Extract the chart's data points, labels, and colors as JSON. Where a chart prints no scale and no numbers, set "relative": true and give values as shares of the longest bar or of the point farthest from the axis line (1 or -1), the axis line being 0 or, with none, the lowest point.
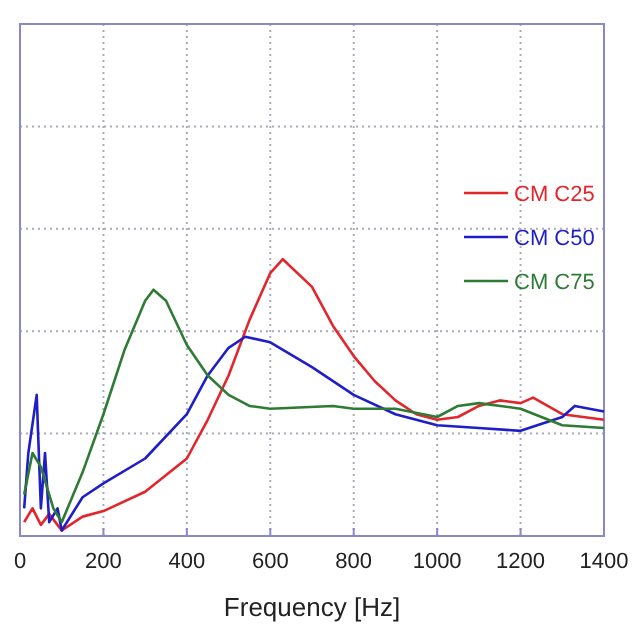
{
  "chart_data": {
    "type": "line",
    "relative": true,
    "xlabel": "Frequency [Hz]",
    "xlim": [
      0,
      1400
    ],
    "xticks": [
      0,
      200,
      400,
      600,
      800,
      1000,
      1200,
      1400
    ],
    "grid": true,
    "legend": "right",
    "series": [
      {
        "name": "CM C25",
        "color": "#e3262b",
        "x": [
          10,
          30,
          50,
          70,
          100,
          150,
          200,
          300,
          400,
          450,
          500,
          550,
          600,
          630,
          700,
          750,
          800,
          850,
          900,
          950,
          1000,
          1050,
          1100,
          1150,
          1200,
          1230,
          1300,
          1400
        ],
        "values": [
          0.05,
          0.1,
          0.04,
          0.08,
          0.02,
          0.07,
          0.09,
          0.16,
          0.28,
          0.42,
          0.58,
          0.78,
          0.95,
          1,
          0.9,
          0.76,
          0.65,
          0.56,
          0.49,
          0.44,
          0.42,
          0.43,
          0.47,
          0.49,
          0.48,
          0.5,
          0.44,
          0.42
        ]
      },
      {
        "name": "CM C50",
        "color": "#1f1fc8",
        "x": [
          10,
          20,
          40,
          50,
          60,
          70,
          90,
          100,
          150,
          200,
          300,
          400,
          450,
          500,
          540,
          600,
          700,
          800,
          900,
          1000,
          1100,
          1200,
          1300,
          1330,
          1400
        ],
        "values": [
          0.1,
          0.3,
          0.51,
          0.1,
          0.3,
          0.05,
          0.1,
          0.02,
          0.14,
          0.19,
          0.28,
          0.44,
          0.58,
          0.68,
          0.72,
          0.7,
          0.61,
          0.51,
          0.44,
          0.4,
          0.39,
          0.38,
          0.43,
          0.47,
          0.45
        ]
      },
      {
        "name": "CM C75",
        "color": "#2e7b35",
        "x": [
          10,
          30,
          50,
          80,
          100,
          150,
          200,
          250,
          300,
          320,
          350,
          400,
          450,
          500,
          550,
          600,
          750,
          800,
          900,
          1000,
          1050,
          1100,
          1200,
          1300,
          1400
        ],
        "values": [
          0.15,
          0.3,
          0.25,
          0.1,
          0.05,
          0.23,
          0.44,
          0.67,
          0.85,
          0.89,
          0.85,
          0.69,
          0.58,
          0.51,
          0.47,
          0.46,
          0.47,
          0.46,
          0.46,
          0.43,
          0.47,
          0.48,
          0.46,
          0.4,
          0.39
        ]
      }
    ]
  }
}
